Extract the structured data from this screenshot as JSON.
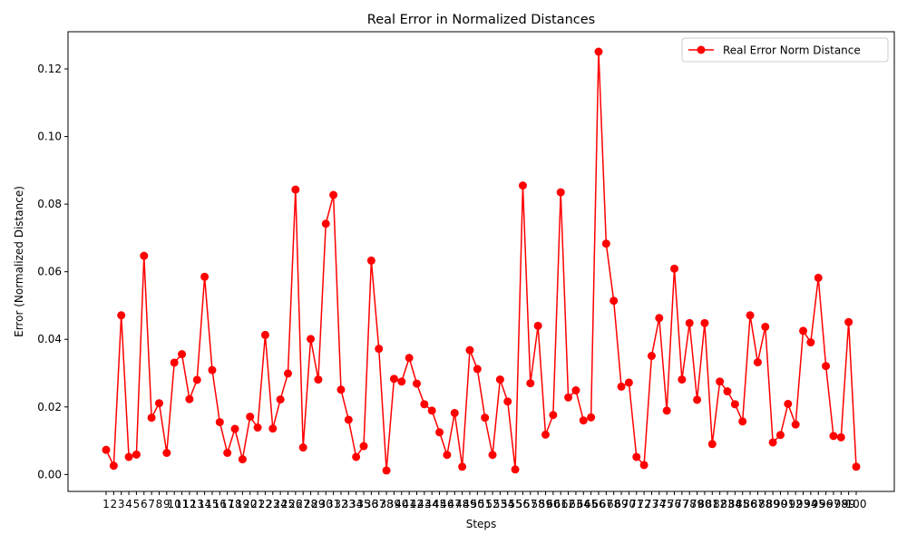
{
  "chart_data": {
    "type": "line",
    "title": "Real Error in Normalized Distances",
    "xlabel": "Steps",
    "ylabel": "Error (Normalized Distance)",
    "ylim": [
      -0.005,
      0.131
    ],
    "yticks": [
      0.0,
      0.02,
      0.04,
      0.06,
      0.08,
      0.1,
      0.12
    ],
    "ytick_labels": [
      "0.00",
      "0.02",
      "0.04",
      "0.06",
      "0.08",
      "0.10",
      "0.12"
    ],
    "x": [
      1,
      2,
      3,
      4,
      5,
      6,
      7,
      8,
      9,
      10,
      11,
      12,
      13,
      14,
      15,
      16,
      17,
      18,
      19,
      20,
      21,
      22,
      23,
      24,
      25,
      26,
      27,
      28,
      29,
      30,
      31,
      32,
      33,
      34,
      35,
      36,
      37,
      38,
      39,
      40,
      41,
      42,
      43,
      44,
      45,
      46,
      47,
      48,
      49,
      50,
      51,
      52,
      53,
      54,
      55,
      56,
      57,
      58,
      59,
      60,
      61,
      62,
      63,
      64,
      65,
      66,
      67,
      68,
      69,
      70,
      71,
      72,
      73,
      74,
      75,
      76,
      77,
      78,
      79,
      80,
      81,
      82,
      83,
      84,
      85,
      86,
      87,
      88,
      89,
      90,
      91,
      92,
      93,
      94,
      95,
      96,
      97,
      98,
      99,
      100
    ],
    "series": [
      {
        "name": "Real Error Norm Distance",
        "color": "#ff0000",
        "marker": "circle",
        "values": [
          0.0073,
          0.0026,
          0.0471,
          0.0052,
          0.0059,
          0.0647,
          0.0168,
          0.0211,
          0.0064,
          0.0331,
          0.0356,
          0.0223,
          0.028,
          0.0585,
          0.0309,
          0.0155,
          0.0064,
          0.0135,
          0.0045,
          0.0171,
          0.0139,
          0.0413,
          0.0136,
          0.0222,
          0.0299,
          0.0843,
          0.008,
          0.0401,
          0.0281,
          0.0742,
          0.0827,
          0.0251,
          0.0162,
          0.0052,
          0.0084,
          0.0633,
          0.0372,
          0.0012,
          0.0283,
          0.0275,
          0.0345,
          0.0269,
          0.0208,
          0.0189,
          0.0125,
          0.0058,
          0.0182,
          0.0023,
          0.0368,
          0.0312,
          0.0168,
          0.0058,
          0.0281,
          0.0216,
          0.0015,
          0.0855,
          0.027,
          0.044,
          0.0118,
          0.0176,
          0.0835,
          0.0228,
          0.0249,
          0.016,
          0.0169,
          0.1251,
          0.0683,
          0.0514,
          0.026,
          0.0272,
          0.0052,
          0.0028,
          0.0351,
          0.0463,
          0.0189,
          0.0609,
          0.0281,
          0.0448,
          0.0221,
          0.0448,
          0.009,
          0.0275,
          0.0246,
          0.0208,
          0.0157,
          0.0471,
          0.0332,
          0.0437,
          0.0095,
          0.0117,
          0.0209,
          0.0148,
          0.0425,
          0.0391,
          0.0582,
          0.0321,
          0.0114,
          0.011,
          0.0451,
          0.0023
        ]
      }
    ],
    "legend_position": "top-right",
    "grid": false
  }
}
